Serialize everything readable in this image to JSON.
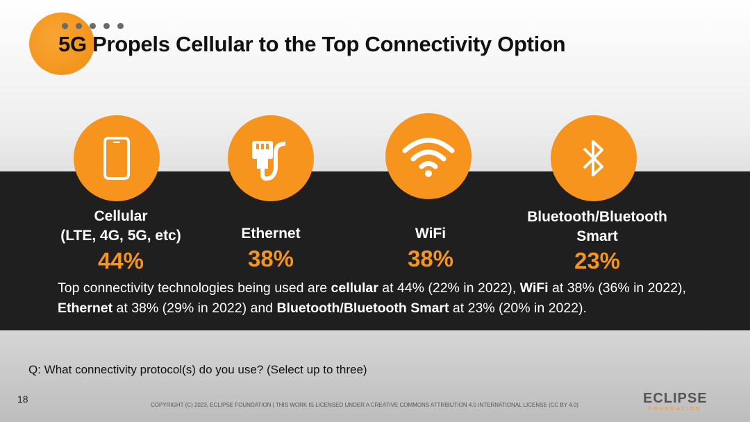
{
  "title": "5G Propels Cellular to the Top Connectivity Option",
  "items": [
    {
      "icon": "smartphone-icon",
      "label1": "Cellular",
      "label2": "(LTE, 4G, 5G, etc)",
      "pct": "44%"
    },
    {
      "icon": "ethernet-plug-icon",
      "label1": "Ethernet",
      "pct": "38%"
    },
    {
      "icon": "wifi-icon",
      "label1": "WiFi",
      "pct": "38%"
    },
    {
      "icon": "bluetooth-icon",
      "label1": "Bluetooth/Bluetooth",
      "label2": "Smart",
      "pct": "23%"
    }
  ],
  "summary": {
    "t1": "Top connectivity technologies being used are ",
    "b1": "cellular",
    "t2": " at 44% (22% in 2022), ",
    "b2": "WiFi",
    "t3": " at 38% (36% in 2022), ",
    "b3": "Ethernet",
    "t4": " at 38% (29% in 2022) and ",
    "b4": "Bluetooth/Bluetooth Smart",
    "t5": " at 23% (20% in 2022)."
  },
  "question": "Q: What connectivity protocol(s) do you use? (Select up to three)",
  "page_number": "18",
  "copyright": "COPYRIGHT (C) 2023, ECLIPSE FOUNDATION | THIS WORK IS LICENSED UNDER A CREATIVE COMMONS ATTRIBUTION 4.0 INTERNATIONAL LICENSE (CC BY 4.0)",
  "logo": {
    "name": "ECLIPSE",
    "sub": "FOUNDATION"
  },
  "colors": {
    "accent": "#f7941d",
    "band": "#1f1f1f"
  }
}
